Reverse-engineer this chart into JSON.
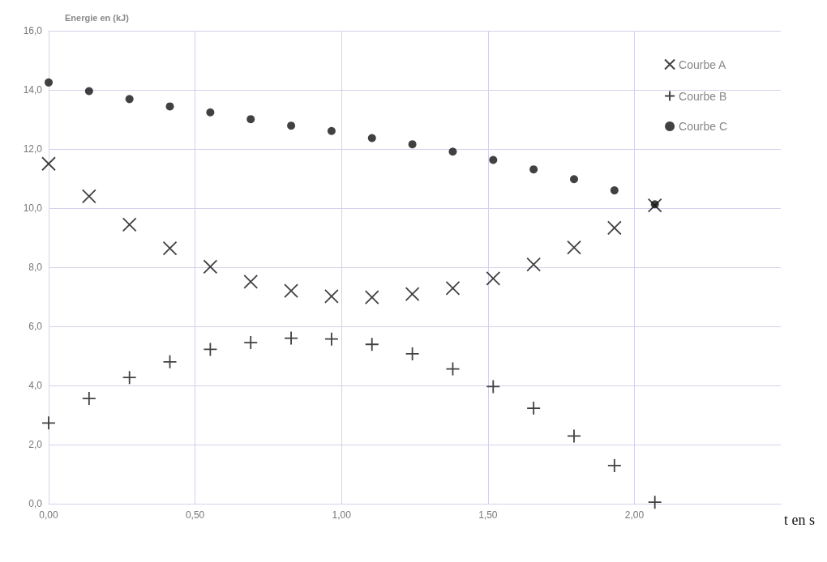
{
  "chart_data": {
    "type": "scatter",
    "ylabel": "Energie en (kJ)",
    "xlabel": "t en s",
    "x": [
      0,
      0.138,
      0.276,
      0.414,
      0.552,
      0.69,
      0.828,
      0.966,
      1.104,
      1.242,
      1.38,
      1.518,
      1.656,
      1.794,
      1.932,
      2.07
    ],
    "xlim": [
      0,
      2.5
    ],
    "ylim": [
      0,
      16
    ],
    "xticks": [
      {
        "value": 0,
        "label": "0,00"
      },
      {
        "value": 0.5,
        "label": "0,50"
      },
      {
        "value": 1,
        "label": "1,00"
      },
      {
        "value": 1.5,
        "label": "1,50"
      },
      {
        "value": 2,
        "label": "2,00"
      }
    ],
    "yticks": [
      {
        "value": 0,
        "label": "0,0"
      },
      {
        "value": 2,
        "label": "2,0"
      },
      {
        "value": 4,
        "label": "4,0"
      },
      {
        "value": 6,
        "label": "6,0"
      },
      {
        "value": 8,
        "label": "8,0"
      },
      {
        "value": 10,
        "label": "10,0"
      },
      {
        "value": 12,
        "label": "12,0"
      },
      {
        "value": 14,
        "label": "14,0"
      },
      {
        "value": 16,
        "label": "16,0"
      }
    ],
    "grid": true,
    "legend": "top right",
    "series": [
      {
        "name": "Courbe A",
        "color": "#111111",
        "marker": "x",
        "values": [
          11.5,
          10.4,
          9.44,
          8.64,
          8.02,
          7.51,
          7.2,
          7.02,
          6.98,
          7.09,
          7.29,
          7.62,
          8.09,
          8.67,
          9.33,
          10.09
        ]
      },
      {
        "name": "Courbe B",
        "color": "#111111",
        "marker": "cross",
        "values": [
          2.73,
          3.56,
          4.27,
          4.8,
          5.22,
          5.45,
          5.6,
          5.57,
          5.39,
          5.07,
          4.56,
          3.96,
          3.23,
          2.29,
          1.29,
          0.05
        ]
      },
      {
        "name": "Courbe C",
        "color": "#111111",
        "marker": "circle",
        "values": [
          14.25,
          13.96,
          13.69,
          13.44,
          13.24,
          13.01,
          12.79,
          12.61,
          12.37,
          12.16,
          11.91,
          11.63,
          11.31,
          10.98,
          10.6,
          10.13
        ]
      }
    ]
  }
}
